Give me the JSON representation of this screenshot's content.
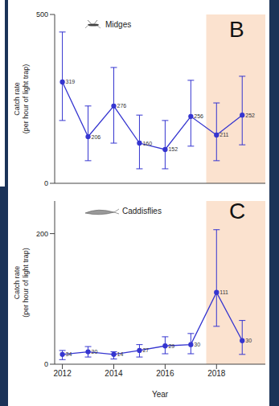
{
  "chart_data": [
    {
      "type": "line",
      "panel": "B",
      "title": "Midges",
      "x": [
        2012,
        2013,
        2014,
        2015,
        2016,
        2017,
        2018,
        2019
      ],
      "values": [
        300,
        138,
        229,
        119,
        100,
        198,
        143,
        202
      ],
      "error": [
        [
          114,
          148
        ],
        [
          71,
          91
        ],
        [
          110,
          114
        ],
        [
          76,
          83
        ],
        [
          57,
          86
        ],
        [
          88,
          107
        ],
        [
          76,
          95
        ],
        [
          88,
          115
        ]
      ],
      "n": [
        319,
        206,
        276,
        160,
        152,
        256,
        211,
        252
      ],
      "color": "#3535d0",
      "marker": "circle",
      "xlim": [
        2011.7,
        2019.9
      ],
      "xticks": [
        2012,
        2014,
        2016,
        2018
      ],
      "ylim": [
        0,
        500
      ],
      "yticks": [
        0,
        500
      ],
      "ylabel": [
        "Catch rate",
        "(per hour of light trap)"
      ],
      "shaded_x": [
        2017.6,
        2019.9
      ],
      "tick_labels": "y"
    },
    {
      "type": "line",
      "panel": "C",
      "title": "Caddisflies",
      "x": [
        2012,
        2013,
        2014,
        2015,
        2016,
        2017,
        2018,
        2019
      ],
      "values": [
        15,
        19,
        15,
        21,
        28,
        30,
        110,
        36
      ],
      "error": [
        [
          8,
          6
        ],
        [
          8,
          8
        ],
        [
          7,
          4
        ],
        [
          10,
          9
        ],
        [
          12,
          14
        ],
        [
          14,
          17
        ],
        [
          52,
          96
        ],
        [
          21,
          31
        ]
      ],
      "n": [
        34,
        20,
        14,
        27,
        29,
        30,
        111,
        30
      ],
      "color": "#3535d0",
      "marker": "circle",
      "xlim": [
        2011.7,
        2019.9
      ],
      "xticks": [
        2012,
        2014,
        2016,
        2018
      ],
      "ylim": [
        0,
        250
      ],
      "yticks": [
        0,
        200
      ],
      "ylabel": [
        "Catch rate",
        "(per hour of light trap)"
      ],
      "xlabel": "Year",
      "shaded_x": [
        2017.6,
        2019.9
      ]
    }
  ]
}
